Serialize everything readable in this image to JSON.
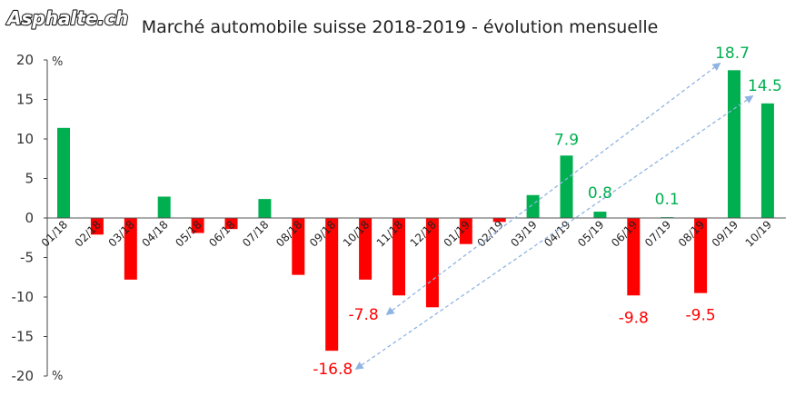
{
  "logo": {
    "text": "Asphalte.ch",
    "fill_color": "#ffffff",
    "outline_color": "#222222"
  },
  "chart_data": {
    "type": "bar",
    "title": "Marché automobile suisse 2018-2019 - évolution mensuelle",
    "xlabel": "",
    "ylabel": "",
    "unit_top": "%",
    "unit_bottom": "%",
    "ylim": [
      -20,
      20
    ],
    "yticks": [
      20,
      15,
      10,
      5,
      0,
      -5,
      -10,
      -15,
      -20
    ],
    "grid": false,
    "legend": false,
    "categories": [
      "01/18",
      "02/18",
      "03/18",
      "04/18",
      "05/18",
      "06/18",
      "07/18",
      "08/18",
      "09/18",
      "10/18",
      "11/18",
      "12/18",
      "01/19",
      "02/19",
      "03/19",
      "04/19",
      "05/19",
      "06/19",
      "07/19",
      "08/19",
      "09/19",
      "10/19"
    ],
    "values": [
      11.4,
      -2.1,
      -7.8,
      2.7,
      -1.9,
      -1.4,
      2.4,
      -7.2,
      -16.8,
      -7.8,
      -9.8,
      -11.3,
      -3.3,
      -0.5,
      2.9,
      7.9,
      0.8,
      -9.8,
      0.1,
      -9.5,
      18.7,
      14.5
    ],
    "positive_color": "#00b050",
    "negative_color": "#ff0000",
    "data_labels": [
      {
        "index": 15,
        "text": "7.9",
        "color": "#00b050"
      },
      {
        "index": 16,
        "text": "0.8",
        "color": "#00b050"
      },
      {
        "index": 18,
        "text": "0.1",
        "color": "#00b050"
      },
      {
        "index": 20,
        "text": "18.7",
        "color": "#00b050"
      },
      {
        "index": 21,
        "text": "14.5",
        "color": "#00b050"
      },
      {
        "index": 17,
        "text": "-9.8",
        "color": "#ff0000"
      },
      {
        "index": 19,
        "text": "-9.5",
        "color": "#ff0000"
      },
      {
        "index": 9,
        "text": "-7.8",
        "color": "#ff0000"
      },
      {
        "index": 8,
        "text": "-16.8",
        "color": "#ff0000"
      }
    ],
    "arrows": [
      {
        "from": 9,
        "to": 20
      },
      {
        "from": 8,
        "to": 21
      }
    ],
    "arrow_color": "#8fb4e3"
  }
}
